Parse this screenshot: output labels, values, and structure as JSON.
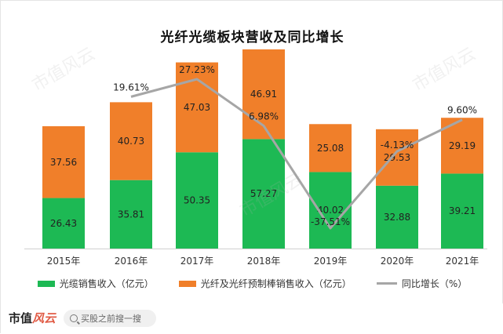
{
  "chart_data": {
    "type": "bar",
    "title": "光纤光缆板块营收及同比增长",
    "categories": [
      "2015年",
      "2016年",
      "2017年",
      "2018年",
      "2019年",
      "2020年",
      "2021年"
    ],
    "series": [
      {
        "name": "光缆销售收入（亿元）",
        "type": "bar",
        "stack": "revenue",
        "color": "#1db954",
        "values": [
          26.43,
          35.81,
          50.35,
          57.27,
          40.02,
          32.88,
          39.21
        ]
      },
      {
        "name": "光纤及光纤预制棒销售收入（亿元）",
        "type": "bar",
        "stack": "revenue",
        "color": "#f07f2a",
        "values": [
          37.56,
          40.73,
          47.03,
          46.91,
          25.08,
          29.53,
          29.19
        ]
      },
      {
        "name": "同比增长（%）",
        "type": "line",
        "color": "#a6a6a6",
        "values": [
          null,
          19.61,
          27.23,
          6.98,
          -37.51,
          -4.13,
          9.6
        ],
        "labels": [
          "",
          "19.61%",
          "27.23%",
          "6.98%",
          "-37.51%",
          "-4.13%",
          "9.60%"
        ]
      }
    ],
    "legend_position": "bottom",
    "grid": false
  },
  "footer": {
    "logo_main": "市值",
    "logo_accent": "风云",
    "search_placeholder": "买股之前搜一搜"
  },
  "watermark_text": "市值风云"
}
